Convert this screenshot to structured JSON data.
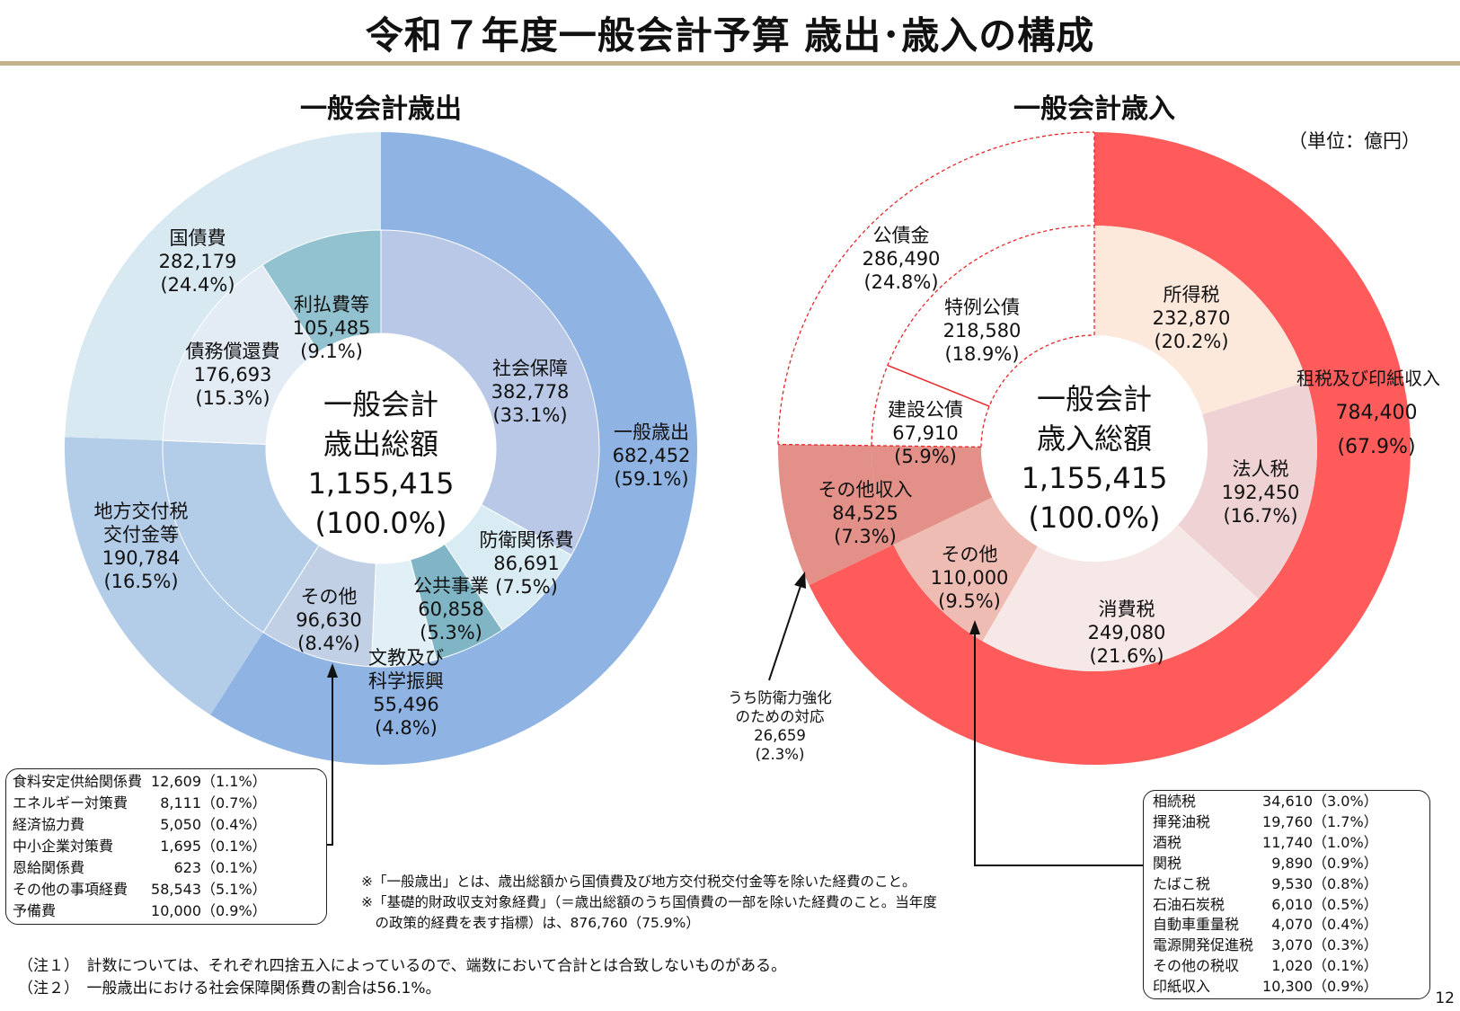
{
  "title": "令和７年度一般会計予算 歳出･歳入の構成",
  "unit": "（単位：億円）",
  "page_number": "12",
  "chart_data": [
    {
      "type": "pie",
      "title": "一般会計歳出",
      "center_label": [
        "一般会計",
        "歳出総額",
        "1,155,415",
        "(100.0%)"
      ],
      "outer_ring": [
        {
          "name": "一般歳出",
          "value": 682452,
          "pct": "(59.1%)",
          "color": "#8fb4e3"
        },
        {
          "name": "地方交付税\n交付金等",
          "value": 190784,
          "pct": "(16.5%)",
          "color": "#b3cde9"
        },
        {
          "name": "国債費",
          "value": 282179,
          "pct": "(24.4%)",
          "color": "#d9e9f2"
        }
      ],
      "inner_ring": [
        {
          "name": "社会保障",
          "value": 382778,
          "pct": "(33.1%)",
          "color": "#b8c8e6"
        },
        {
          "name": "防衛関係費",
          "value": 86691,
          "pct": "(7.5%)",
          "color": "#d9ecf4"
        },
        {
          "name": "公共事業",
          "value": 60858,
          "pct": "(5.3%)",
          "color": "#7fb5c5"
        },
        {
          "name": "文教及び\n科学振興",
          "value": 55496,
          "pct": "(4.8%)",
          "color": "#e1eff6"
        },
        {
          "name": "その他",
          "value": 96630,
          "pct": "(8.4%)",
          "color": "#c2d0e6"
        },
        {
          "name": "地方交付税\n交付金等",
          "value": 190784,
          "pct": "(16.5%)",
          "color": "#b3cde9"
        },
        {
          "name": "債務償還費",
          "value": 176693,
          "pct": "(15.3%)",
          "color": "#e3ebf5"
        },
        {
          "name": "利払費等",
          "value": 105485,
          "pct": "(9.1%)",
          "color": "#92c1cf"
        }
      ],
      "labels": {
        "一般歳出": [
          "一般歳出",
          "682,452",
          "(59.1%)"
        ],
        "国債費": [
          "国債費",
          "282,179",
          "(24.4%)"
        ],
        "地方交付税交付金等": [
          "地方交付税",
          "交付金等",
          "190,784",
          "(16.5%)"
        ],
        "社会保障": [
          "社会保障",
          "382,778",
          "(33.1%)"
        ],
        "防衛関係費": [
          "防衛関係費",
          "86,691",
          "(7.5%)"
        ],
        "公共事業": [
          "公共事業",
          "60,858",
          "(5.3%)"
        ],
        "文教及び科学振興": [
          "文教及び",
          "科学振興",
          "55,496",
          "(4.8%)"
        ],
        "その他": [
          "その他",
          "96,630",
          "(8.4%)"
        ],
        "債務償還費": [
          "債務償還費",
          "176,693",
          "(15.3%)"
        ],
        "利払費等": [
          "利払費等",
          "105,485",
          "(9.1%)"
        ]
      },
      "other_breakdown": [
        {
          "name": "食料安定供給関係費",
          "value": "12,609（1.1%）"
        },
        {
          "name": "エネルギー対策費",
          "value": "8,111（0.7%）"
        },
        {
          "name": "経済協力費",
          "value": "5,050（0.4%）"
        },
        {
          "name": "中小企業対策費",
          "value": "1,695（0.1%）"
        },
        {
          "name": "恩給関係費",
          "value": "623（0.1%）"
        },
        {
          "name": "その他の事項経費",
          "value": "58,543（5.1%）"
        },
        {
          "name": "予備費",
          "value": "10,000（0.9%）"
        }
      ]
    },
    {
      "type": "pie",
      "title": "一般会計歳入",
      "center_label": [
        "一般会計",
        "歳入総額",
        "1,155,415",
        "(100.0%)"
      ],
      "outer_ring": [
        {
          "name": "租税及び印紙収入",
          "value": 784400,
          "pct": "(67.9%)",
          "color": "#ff5b5b"
        },
        {
          "name": "その他収入",
          "value": 84525,
          "pct": "(7.3%)",
          "color": "#e29088"
        },
        {
          "name": "公債金",
          "value": 286490,
          "pct": "(24.8%)",
          "color": "#ffffff"
        }
      ],
      "inner_ring": [
        {
          "name": "所得税",
          "value": 232870,
          "pct": "(20.2%)",
          "color": "#fde8dc"
        },
        {
          "name": "法人税",
          "value": 192450,
          "pct": "(16.7%)",
          "color": "#efd3d4"
        },
        {
          "name": "消費税",
          "value": 249080,
          "pct": "(21.6%)",
          "color": "#f7e8e8"
        },
        {
          "name": "その他",
          "value": 110000,
          "pct": "(9.5%)",
          "color": "#efbcb4"
        },
        {
          "name": "その他収入",
          "value": 84525,
          "pct": "(7.3%)",
          "color": "#e29088"
        },
        {
          "name": "建設公債",
          "value": 67910,
          "pct": "(5.9%)",
          "color": "#ffffff"
        },
        {
          "name": "特例公債",
          "value": 218580,
          "pct": "(18.9%)",
          "color": "#ffffff"
        }
      ],
      "labels": {
        "租税及び印紙収入": [
          "租税及び印紙収入",
          "784,400",
          "(67.9%)"
        ],
        "公債金": [
          "公債金",
          "286,490",
          "(24.8%)"
        ],
        "その他収入": [
          "その他収入",
          "84,525",
          "(7.3%)"
        ],
        "所得税": [
          "所得税",
          "232,870",
          "(20.2%)"
        ],
        "法人税": [
          "法人税",
          "192,450",
          "(16.7%)"
        ],
        "消費税": [
          "消費税",
          "249,080",
          "(21.6%)"
        ],
        "その他": [
          "その他",
          "110,000",
          "(9.5%)"
        ],
        "建設公債": [
          "建設公債",
          "67,910",
          "(5.9%)"
        ],
        "特例公債": [
          "特例公債",
          "218,580",
          "(18.9%)"
        ]
      },
      "defense_note": [
        "うち防衛力強化",
        "のための対応",
        "26,659",
        "(2.3%)"
      ],
      "other_breakdown": [
        {
          "name": "相続税",
          "value": "34,610（3.0%）"
        },
        {
          "name": "揮発油税",
          "value": "19,760（1.7%）"
        },
        {
          "name": "酒税",
          "value": "11,740（1.0%）"
        },
        {
          "name": "関税",
          "value": "9,890（0.9%）"
        },
        {
          "name": "たばこ税",
          "value": "9,530（0.8%）"
        },
        {
          "name": "石油石炭税",
          "value": "6,010（0.5%）"
        },
        {
          "name": "自動車重量税",
          "value": "4,070（0.4%）"
        },
        {
          "name": "電源開発促進税",
          "value": "3,070（0.3%）"
        },
        {
          "name": "その他の税収",
          "value": "1,020（0.1%）"
        },
        {
          "name": "印紙収入",
          "value": "10,300（0.9%）"
        }
      ]
    }
  ],
  "notes": [
    "※「一般歳出」とは、歳出総額から国債費及び地方交付税交付金等を除いた経費のこと。",
    "※「基礎的財政収支対象経費」（＝歳出総額のうち国債費の一部を除いた経費のこと。当年度",
    "　の政策的経費を表す指標）は、876,760（75.9%）"
  ],
  "footnotes": [
    "（注１）　計数については、それぞれ四捨五入によっているので、端数において合計とは合致しないものがある。",
    "（注２）　一般歳出における社会保障関係費の割合は56.1%。"
  ]
}
